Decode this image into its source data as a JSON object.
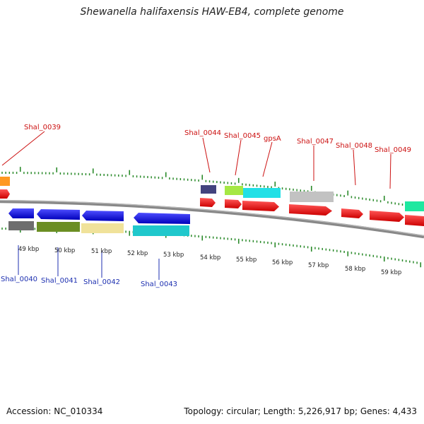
{
  "title": "Shewanella halifaxensis HAW-EB4, complete genome",
  "footer": {
    "accession": "Accession: NC_010334",
    "info": "Topology: circular; Length: 5,226,917 bp; Genes: 4,433"
  },
  "ruler": {
    "unit": "kbp",
    "labels": [
      "49 kbp",
      "50 kbp",
      "51 kbp",
      "52 kbp",
      "53 kbp",
      "54 kbp",
      "55 kbp",
      "56 kbp",
      "57 kbp",
      "58 kbp",
      "59 kbp"
    ]
  },
  "genes_top": [
    {
      "name": "Shal_0039",
      "color": "#ee1111"
    },
    {
      "name": "Shal_0044",
      "color": "#ee1111"
    },
    {
      "name": "Shal_0045",
      "color": "#ee1111"
    },
    {
      "name": "gpsA",
      "color": "#ee1111"
    },
    {
      "name": "Shal_0047",
      "color": "#ee1111"
    },
    {
      "name": "Shal_0048",
      "color": "#ee1111"
    },
    {
      "name": "Shal_0049",
      "color": "#ee1111"
    }
  ],
  "genes_bottom": [
    {
      "name": "Shal_0040",
      "color": "#1111ee"
    },
    {
      "name": "Shal_0041",
      "color": "#1111ee"
    },
    {
      "name": "Shal_0042",
      "color": "#1111ee"
    },
    {
      "name": "Shal_0043",
      "color": "#1111ee"
    }
  ],
  "colors": {
    "forward_strand": "#ee1111",
    "reverse_strand": "#1111ee",
    "backbone": "#8a8a8a",
    "ticks": "#2a8a2a"
  }
}
